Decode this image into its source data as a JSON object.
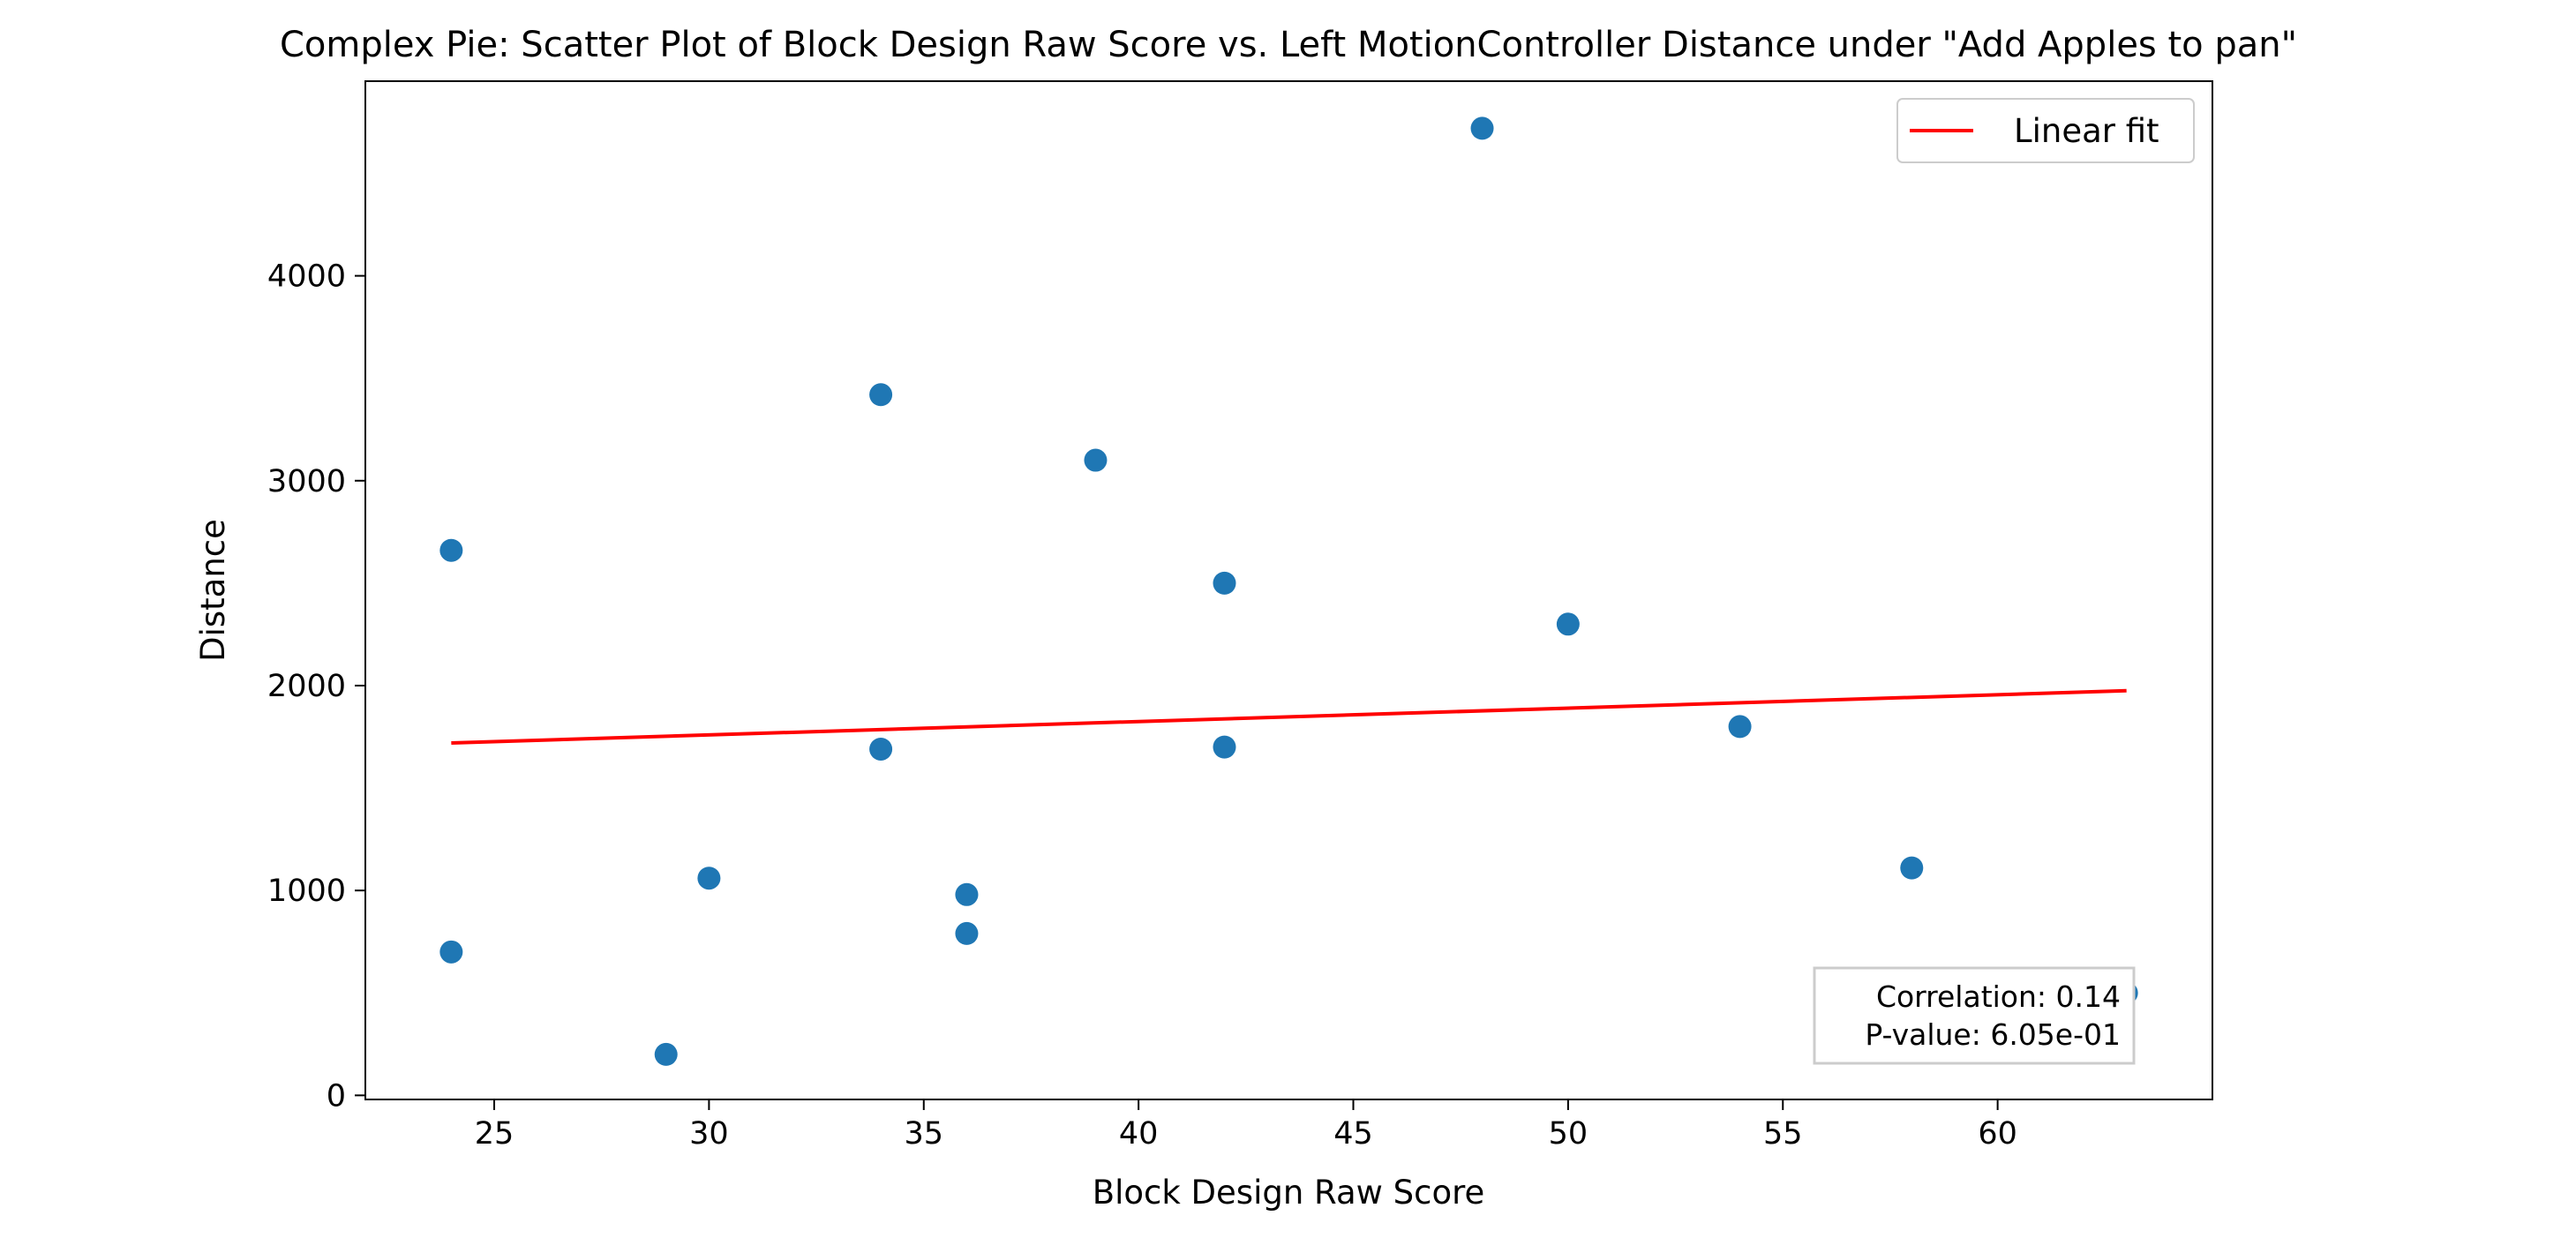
{
  "chart_data": {
    "type": "scatter",
    "title": "Complex Pie: Scatter Plot of Block Design Raw Score vs. Left MotionController Distance under \"Add Apples to pan\"",
    "xlabel": "Block Design Raw Score",
    "ylabel": "Distance",
    "xlim": [
      22.0,
      65.0
    ],
    "ylim": [
      -20,
      4950
    ],
    "xticks": [
      25,
      30,
      35,
      40,
      45,
      50,
      55,
      60
    ],
    "yticks": [
      0,
      1000,
      2000,
      3000,
      4000
    ],
    "grid": false,
    "legend": {
      "position": "top-right",
      "entries": [
        "Linear fit"
      ]
    },
    "series": [
      {
        "type": "scatter",
        "color": "#1f77b4",
        "points": [
          {
            "x": 24,
            "y": 2660
          },
          {
            "x": 24,
            "y": 700
          },
          {
            "x": 29,
            "y": 200
          },
          {
            "x": 30,
            "y": 1060
          },
          {
            "x": 34,
            "y": 3420
          },
          {
            "x": 34,
            "y": 1690
          },
          {
            "x": 36,
            "y": 980
          },
          {
            "x": 36,
            "y": 790
          },
          {
            "x": 39,
            "y": 3100
          },
          {
            "x": 42,
            "y": 2500
          },
          {
            "x": 42,
            "y": 1700
          },
          {
            "x": 48,
            "y": 4720
          },
          {
            "x": 50,
            "y": 2300
          },
          {
            "x": 54,
            "y": 1800
          },
          {
            "x": 58,
            "y": 1110
          },
          {
            "x": 63,
            "y": 500
          }
        ]
      },
      {
        "name": "Linear fit",
        "type": "line",
        "color": "#ff0000",
        "points": [
          {
            "x": 24,
            "y": 1720
          },
          {
            "x": 63,
            "y": 1975
          }
        ]
      }
    ],
    "annotation": {
      "lines": [
        "Correlation: 0.14",
        "P-value: 6.05e-01"
      ],
      "position": "bottom-right"
    }
  }
}
